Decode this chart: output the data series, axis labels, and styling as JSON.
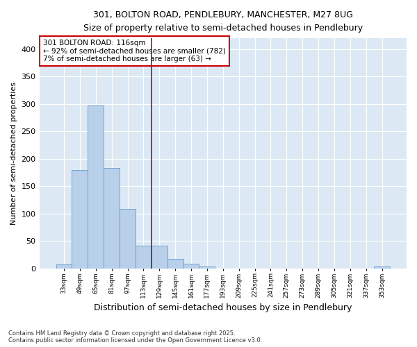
{
  "title1": "301, BOLTON ROAD, PENDLEBURY, MANCHESTER, M27 8UG",
  "title2": "Size of property relative to semi-detached houses in Pendlebury",
  "xlabel": "Distribution of semi-detached houses by size in Pendlebury",
  "ylabel": "Number of semi-detached properties",
  "categories": [
    "33sqm",
    "49sqm",
    "65sqm",
    "81sqm",
    "97sqm",
    "113sqm",
    "129sqm",
    "145sqm",
    "161sqm",
    "177sqm",
    "193sqm",
    "209sqm",
    "225sqm",
    "241sqm",
    "257sqm",
    "273sqm",
    "289sqm",
    "305sqm",
    "321sqm",
    "337sqm",
    "353sqm"
  ],
  "values": [
    7,
    180,
    297,
    183,
    109,
    42,
    42,
    18,
    8,
    4,
    0,
    0,
    0,
    0,
    0,
    0,
    0,
    0,
    0,
    0,
    4
  ],
  "bar_color": "#b8d0ea",
  "bar_edge_color": "#6699cc",
  "vline_color": "#cc0000",
  "annotation_title": "301 BOLTON ROAD: 116sqm",
  "annotation_line1": "← 92% of semi-detached houses are smaller (782)",
  "annotation_line2": "7% of semi-detached houses are larger (63) →",
  "annotation_box_color": "white",
  "annotation_box_edge_color": "#cc0000",
  "footer1": "Contains HM Land Registry data © Crown copyright and database right 2025.",
  "footer2": "Contains public sector information licensed under the Open Government Licence v3.0.",
  "ylim": [
    0,
    420
  ],
  "yticks": [
    0,
    50,
    100,
    150,
    200,
    250,
    300,
    350,
    400
  ],
  "bg_color": "#ffffff",
  "plot_bg_color": "#dce9f5"
}
